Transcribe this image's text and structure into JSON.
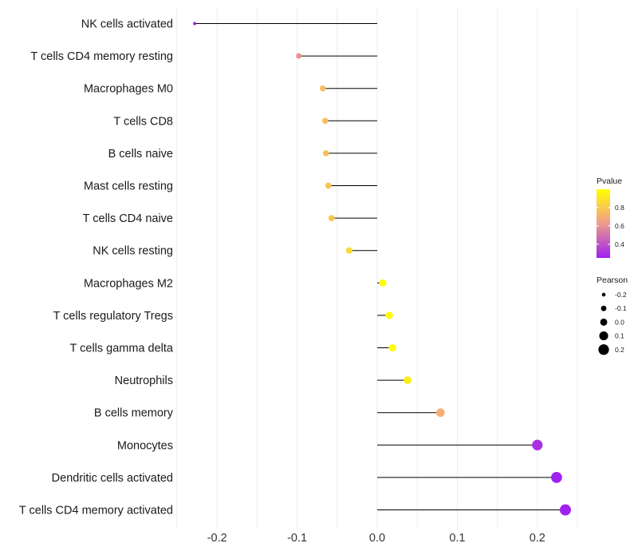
{
  "chart_data": {
    "type": "lollipop",
    "title": "",
    "xlabel": "",
    "ylabel": "",
    "xlim": [
      -0.25,
      0.25
    ],
    "x_ticks": [
      -0.2,
      -0.1,
      0.0,
      0.1,
      0.2
    ],
    "x_tick_labels": [
      "-0.2",
      "-0.1",
      "0.0",
      "0.1",
      "0.2"
    ],
    "grid": true,
    "categories": [
      "NK cells activated",
      "T cells CD4 memory resting",
      "Macrophages M0",
      "T cells CD8",
      "B cells naive",
      "Mast cells resting",
      "T cells CD4 naive",
      "NK cells resting",
      "Macrophages M2",
      "T cells regulatory  Tregs ",
      "T cells gamma delta",
      "Neutrophils",
      "B cells memory",
      "Monocytes",
      "Dendritic cells activated",
      "T cells CD4 memory activated"
    ],
    "values": [
      -0.228,
      -0.098,
      -0.068,
      -0.065,
      -0.064,
      -0.061,
      -0.057,
      -0.035,
      0.007,
      0.015,
      0.019,
      0.038,
      0.079,
      0.2,
      0.224,
      0.235
    ],
    "pvalues": [
      0.25,
      0.6,
      0.75,
      0.76,
      0.76,
      0.78,
      0.79,
      0.86,
      0.99,
      0.99,
      0.99,
      0.93,
      0.7,
      0.3,
      0.25,
      0.25
    ],
    "legend_pvalue": {
      "title": "Pvalue",
      "range": [
        0.25,
        1.0
      ],
      "ticks": [
        0.4,
        0.6,
        0.8
      ],
      "tick_labels": [
        "0.4",
        "0.6",
        "0.8"
      ],
      "colors": [
        "#a020f0",
        "#f4a582",
        "#ffff00"
      ],
      "placement": "right"
    },
    "legend_pearson": {
      "title": "Pearson",
      "values": [
        -0.2,
        -0.1,
        0.0,
        0.1,
        0.2
      ],
      "labels": [
        "-0.2",
        "-0.1",
        "0.0",
        "0.1",
        "0.2"
      ],
      "placement": "right"
    },
    "colors": {
      "stem": "#000000",
      "grid": "#ebebeb",
      "point_low": "#a020f0",
      "point_mid": "#f4a582",
      "point_high": "#ffff00"
    }
  }
}
